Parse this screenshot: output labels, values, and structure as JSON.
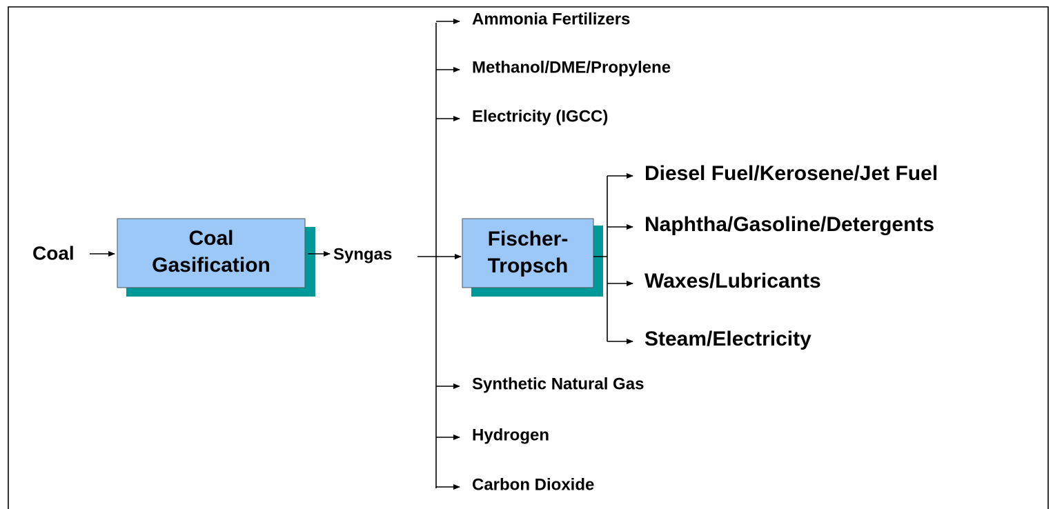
{
  "input": "Coal",
  "nodes": [
    {
      "label": [
        "Coal",
        "Gasification"
      ]
    },
    {
      "label": [
        "Fischer-",
        "Tropsch"
      ]
    }
  ],
  "intermediate": "Syngas",
  "syngas_products": [
    "Ammonia Fertilizers",
    "Methanol/DME/Propylene",
    "Electricity (IGCC)",
    "Synthetic Natural Gas",
    "Hydrogen",
    "Carbon Dioxide"
  ],
  "ft_products": [
    "Diesel Fuel/Kerosene/Jet Fuel",
    "Naphtha/Gasoline/Detergents",
    "Waxes/Lubricants",
    "Steam/Electricity"
  ]
}
